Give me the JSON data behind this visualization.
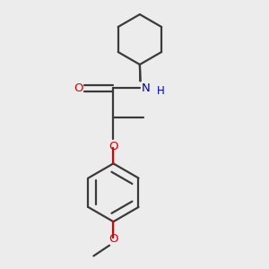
{
  "background_color": "#ececec",
  "bond_color": "#3a3a3a",
  "oxygen_color": "#dd0000",
  "nitrogen_color": "#0000bb",
  "line_width": 1.6,
  "figsize": [
    3.0,
    3.0
  ],
  "dpi": 100,
  "xlim": [
    0,
    10
  ],
  "ylim": [
    0,
    10
  ]
}
